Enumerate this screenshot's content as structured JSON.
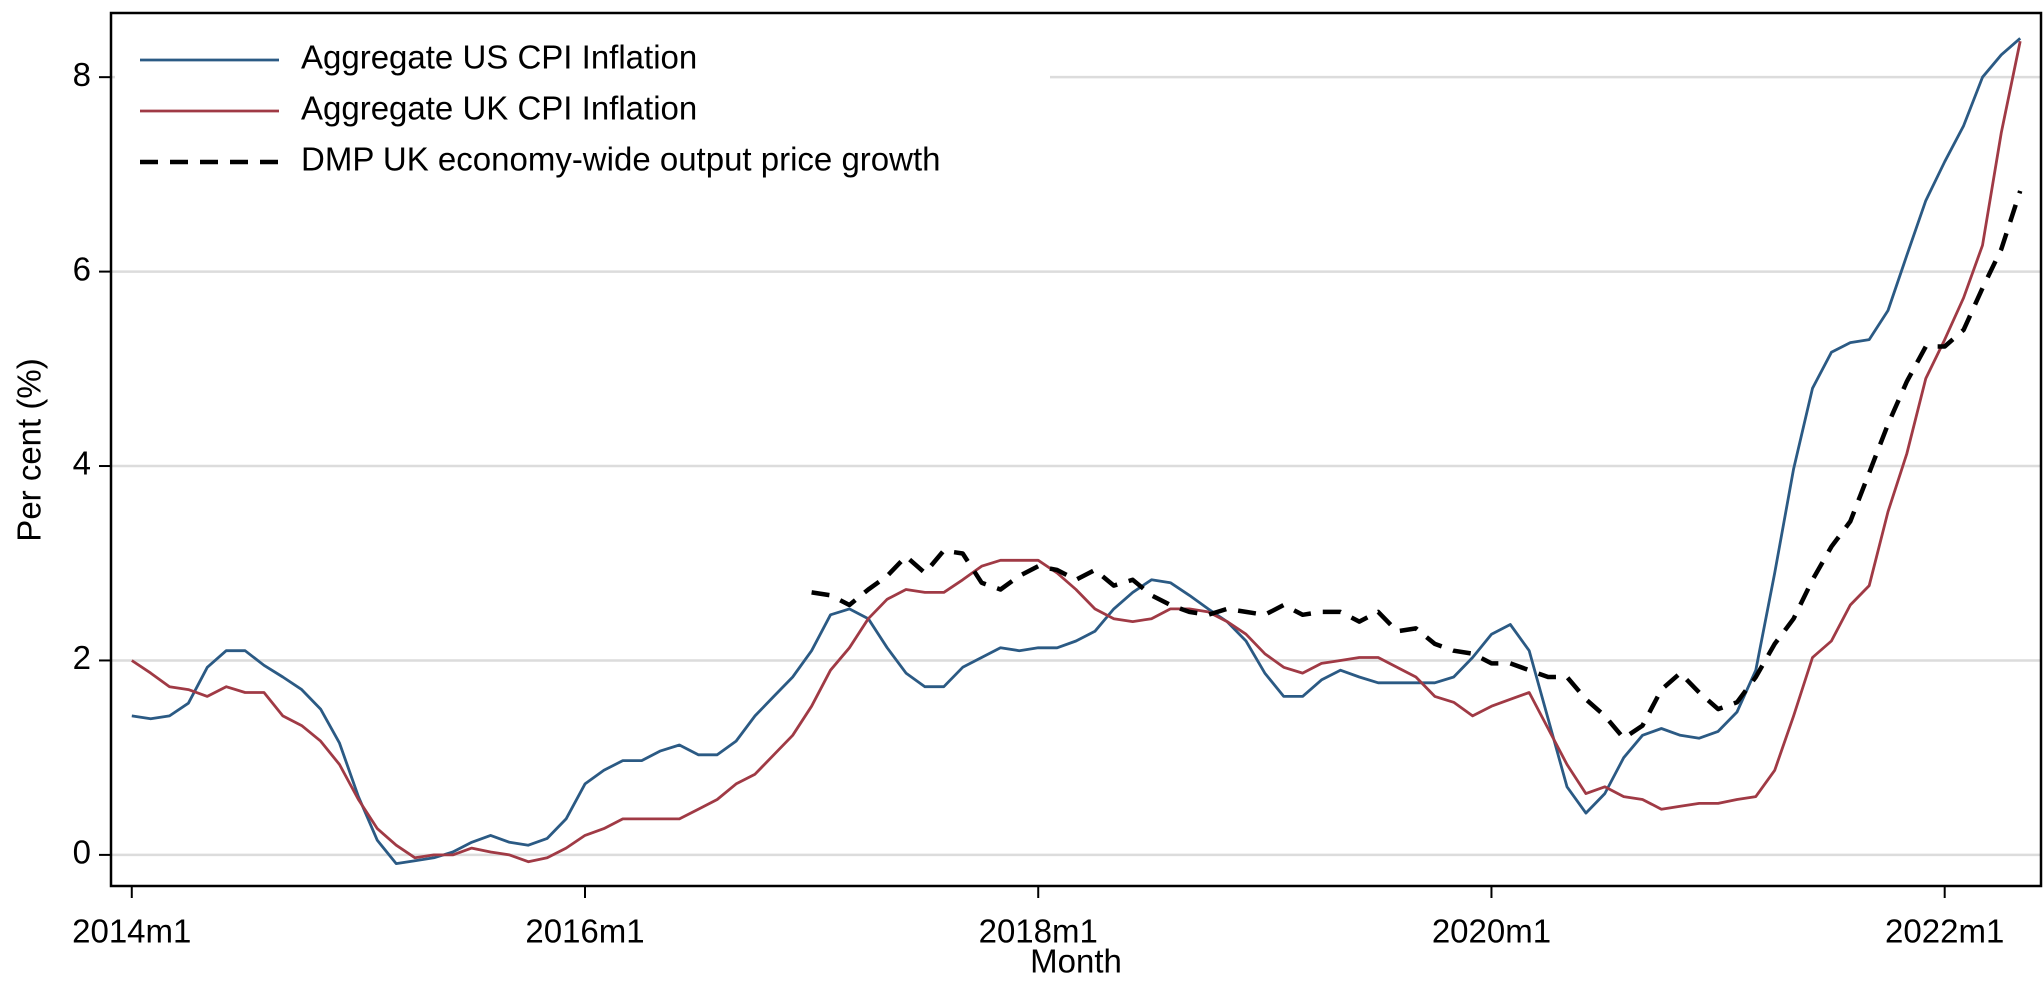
{
  "chart_data": {
    "type": "line",
    "x_label": "Month",
    "y_label": "Per cent (%)",
    "x": [
      648,
      649,
      650,
      651,
      652,
      653,
      654,
      655,
      656,
      657,
      658,
      659,
      660,
      661,
      662,
      663,
      664,
      665,
      666,
      667,
      668,
      669,
      670,
      671,
      672,
      673,
      674,
      675,
      676,
      677,
      678,
      679,
      680,
      681,
      682,
      683,
      684,
      685,
      686,
      687,
      688,
      689,
      690,
      691,
      692,
      693,
      694,
      695,
      696,
      697,
      698,
      699,
      700,
      701,
      702,
      703,
      704,
      705,
      706,
      707,
      708,
      709,
      710,
      711,
      712,
      713,
      714,
      715,
      716,
      717,
      718,
      719,
      720,
      721,
      722,
      723,
      724,
      725,
      726,
      727,
      728,
      729,
      730,
      731,
      732,
      733,
      734,
      735,
      736,
      737,
      738,
      739,
      740,
      741,
      742,
      743,
      744,
      745,
      746,
      747,
      748
    ],
    "series": [
      {
        "name": "Aggregate US CPI Inflation",
        "color": "#2b5a84",
        "dashed": false,
        "values": [
          1.43,
          1.4,
          1.43,
          1.56,
          1.93,
          2.1,
          2.1,
          1.95,
          1.83,
          1.7,
          1.5,
          1.15,
          0.6,
          0.15,
          -0.09,
          -0.06,
          -0.03,
          0.03,
          0.13,
          0.2,
          0.13,
          0.1,
          0.17,
          0.37,
          0.73,
          0.87,
          0.97,
          0.97,
          1.07,
          1.13,
          1.03,
          1.03,
          1.17,
          1.43,
          1.63,
          1.83,
          2.1,
          2.47,
          2.53,
          2.43,
          2.13,
          1.87,
          1.73,
          1.73,
          1.93,
          2.03,
          2.13,
          2.1,
          2.13,
          2.13,
          2.2,
          2.3,
          2.53,
          2.7,
          2.83,
          2.8,
          2.67,
          2.53,
          2.4,
          2.2,
          1.87,
          1.63,
          1.63,
          1.8,
          1.9,
          1.83,
          1.77,
          1.77,
          1.77,
          1.77,
          1.83,
          2.03,
          2.27,
          2.37,
          2.1,
          1.4,
          0.7,
          0.43,
          0.63,
          1.0,
          1.23,
          1.3,
          1.23,
          1.2,
          1.27,
          1.47,
          1.9,
          2.9,
          3.97,
          4.8,
          5.17,
          5.27,
          5.3,
          5.6,
          6.17,
          6.73,
          7.13,
          7.5,
          8.0,
          8.23,
          8.4
        ]
      },
      {
        "name": "Aggregate UK CPI Inflation",
        "color": "#a03a45",
        "dashed": false,
        "values": [
          2.0,
          1.87,
          1.73,
          1.7,
          1.63,
          1.73,
          1.67,
          1.67,
          1.43,
          1.33,
          1.17,
          0.93,
          0.57,
          0.27,
          0.1,
          -0.03,
          0.0,
          0.0,
          0.07,
          0.03,
          0.0,
          -0.07,
          -0.03,
          0.07,
          0.2,
          0.27,
          0.37,
          0.37,
          0.37,
          0.37,
          0.47,
          0.57,
          0.73,
          0.83,
          1.03,
          1.23,
          1.53,
          1.9,
          2.13,
          2.43,
          2.63,
          2.73,
          2.7,
          2.7,
          2.83,
          2.97,
          3.03,
          3.03,
          3.03,
          2.9,
          2.73,
          2.53,
          2.43,
          2.4,
          2.43,
          2.53,
          2.53,
          2.5,
          2.4,
          2.27,
          2.07,
          1.93,
          1.87,
          1.97,
          2.0,
          2.03,
          2.03,
          1.93,
          1.83,
          1.63,
          1.57,
          1.43,
          1.53,
          1.6,
          1.67,
          1.3,
          0.93,
          0.63,
          0.7,
          0.6,
          0.57,
          0.47,
          0.5,
          0.53,
          0.53,
          0.57,
          0.6,
          0.87,
          1.43,
          2.03,
          2.2,
          2.57,
          2.77,
          3.53,
          4.13,
          4.9,
          5.3,
          5.73,
          6.27,
          7.43,
          8.37
        ]
      },
      {
        "name": "DMP UK economy-wide output price growth",
        "color": "#000000",
        "dashed": true,
        "values": [
          null,
          null,
          null,
          null,
          null,
          null,
          null,
          null,
          null,
          null,
          null,
          null,
          null,
          null,
          null,
          null,
          null,
          null,
          null,
          null,
          null,
          null,
          null,
          null,
          null,
          null,
          null,
          null,
          null,
          null,
          null,
          null,
          null,
          null,
          null,
          null,
          2.7,
          2.67,
          2.57,
          2.73,
          2.87,
          3.07,
          2.9,
          3.13,
          3.1,
          2.8,
          2.73,
          2.87,
          2.97,
          2.93,
          2.83,
          2.93,
          2.77,
          2.83,
          2.67,
          2.57,
          2.5,
          2.47,
          2.53,
          2.5,
          2.47,
          2.57,
          2.47,
          2.5,
          2.5,
          2.4,
          2.5,
          2.3,
          2.33,
          2.17,
          2.1,
          2.07,
          1.97,
          1.97,
          1.9,
          1.83,
          1.83,
          1.6,
          1.43,
          1.2,
          1.33,
          1.7,
          1.87,
          1.67,
          1.5,
          1.57,
          1.83,
          2.17,
          2.43,
          2.83,
          3.17,
          3.43,
          3.93,
          4.43,
          4.87,
          5.23,
          5.23,
          5.4,
          5.83,
          6.23,
          6.83
        ]
      }
    ],
    "xlim": [
      646.9,
      749.1
    ],
    "xticks": [
      {
        "value": 648,
        "label": "2014m1"
      },
      {
        "value": 672,
        "label": "2016m1"
      },
      {
        "value": 696,
        "label": "2018m1"
      },
      {
        "value": 720,
        "label": "2020m1"
      },
      {
        "value": 744,
        "label": "2022m1"
      }
    ],
    "ylim": [
      -0.32,
      8.66
    ],
    "yticks": [
      0,
      2,
      4,
      6,
      8
    ],
    "grid": true,
    "legend": "top-left"
  }
}
